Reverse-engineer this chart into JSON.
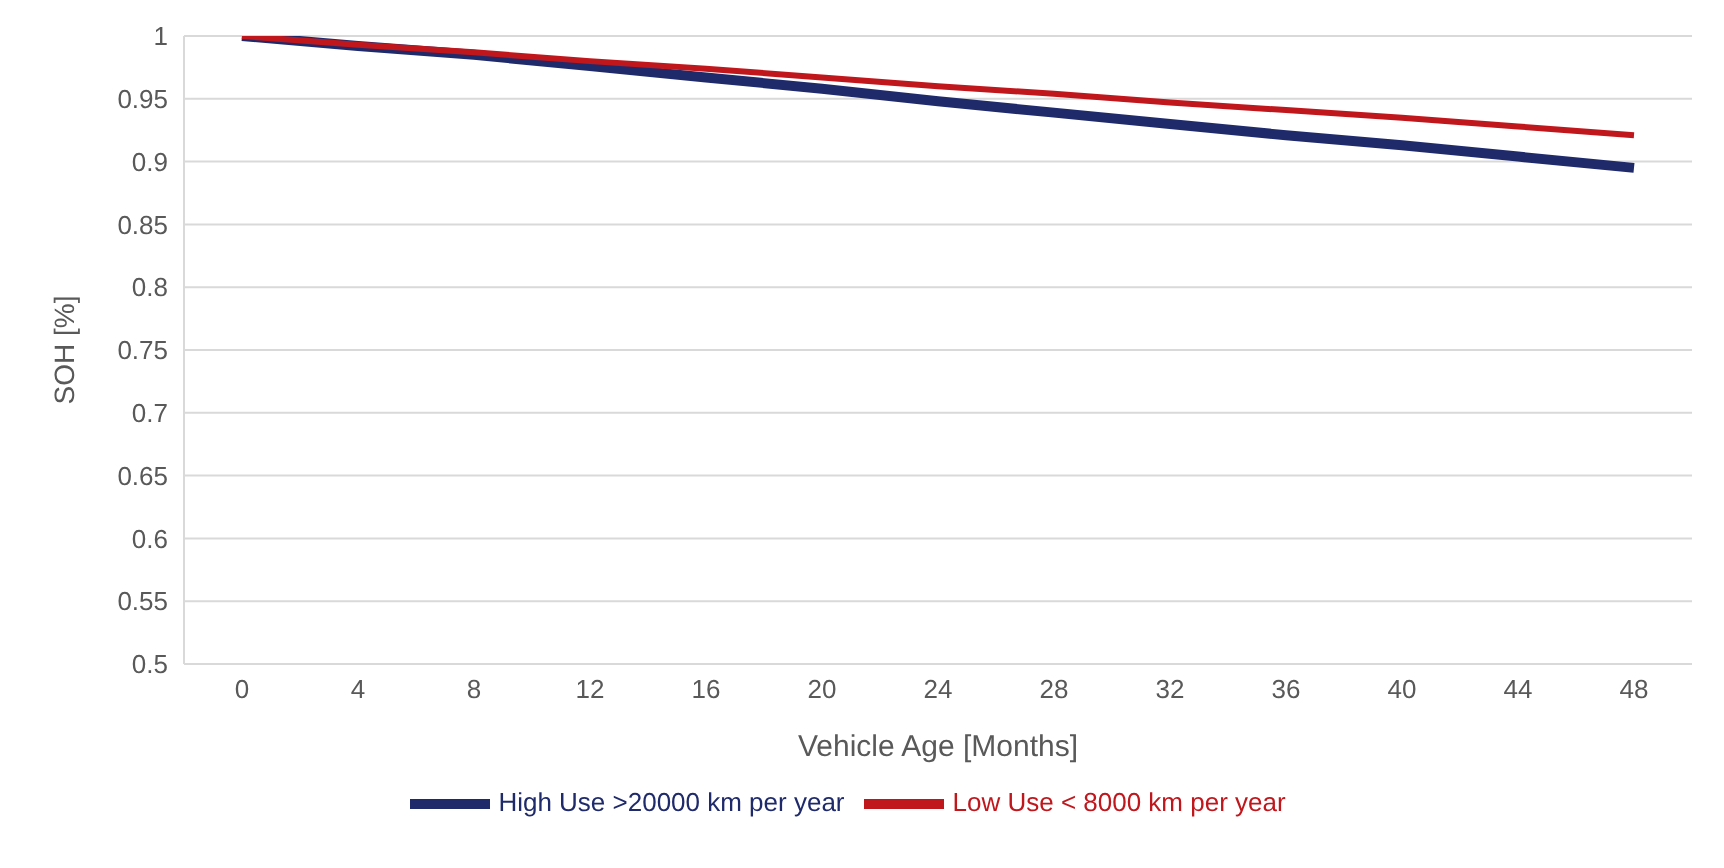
{
  "chart_data": {
    "type": "line",
    "xlabel": "Vehicle Age [Months]",
    "ylabel": "SOH [%]",
    "x": [
      0,
      4,
      8,
      12,
      16,
      20,
      24,
      28,
      32,
      36,
      40,
      44,
      48
    ],
    "series": [
      {
        "name": "High Use >20000 km per year",
        "color": "#1f2a6b",
        "values": [
          1,
          0.992,
          0.985,
          0.976,
          0.967,
          0.958,
          0.948,
          0.939,
          0.93,
          0.921,
          0.913,
          0.904,
          0.895
        ]
      },
      {
        "name": "Low Use < 8000 km per year",
        "color": "#c0171d",
        "values": [
          1,
          0.993,
          0.987,
          0.98,
          0.974,
          0.967,
          0.96,
          0.954,
          0.947,
          0.941,
          0.935,
          0.928,
          0.921
        ]
      }
    ],
    "xlim": [
      -2,
      50
    ],
    "xticks": [
      0,
      4,
      8,
      12,
      16,
      20,
      24,
      28,
      32,
      36,
      40,
      44,
      48
    ],
    "ylim": [
      0.5,
      1
    ],
    "yticks": [
      0.5,
      {
        "value": 0.55,
        "label": "0.55"
      },
      {
        "value": 0.6,
        "label": "0.6"
      },
      {
        "value": 0.65,
        "label": "0.65"
      },
      {
        "value": 0.7,
        "label": "0.7"
      },
      {
        "value": 0.75,
        "label": "0.75"
      },
      {
        "value": 0.8,
        "label": "0.8"
      },
      {
        "value": 0.85,
        "label": "0.85"
      },
      {
        "value": 0.9,
        "label": "0.9"
      },
      {
        "value": 0.95,
        "label": "0.95"
      },
      1
    ],
    "grid": "y",
    "legend": "bottom",
    "marker": "none",
    "line_style": "solid"
  }
}
